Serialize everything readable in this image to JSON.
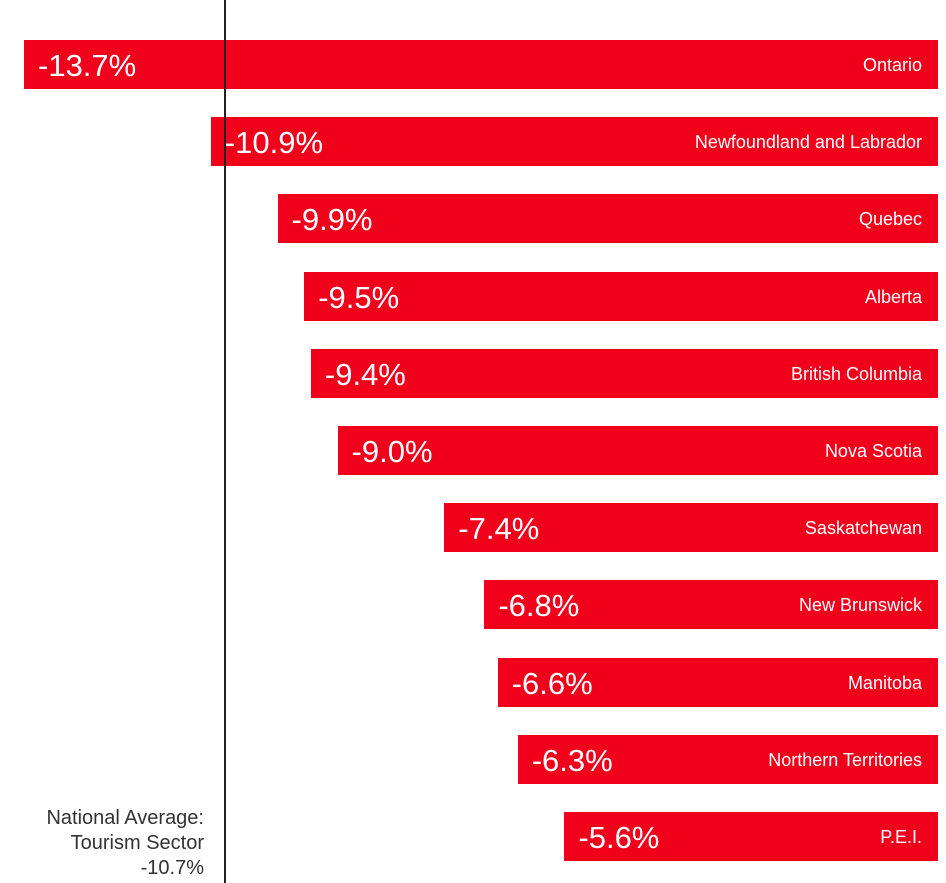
{
  "chart_data": {
    "type": "bar",
    "orientation": "horizontal",
    "categories": [
      "Ontario",
      "Newfoundland and Labrador",
      "Quebec",
      "Alberta",
      "British Columbia",
      "Nova Scotia",
      "Saskatchewan",
      "New Brunswick",
      "Manitoba",
      "Northern Territories",
      "P.E.I."
    ],
    "values": [
      -13.7,
      -10.9,
      -9.9,
      -9.5,
      -9.4,
      -9.0,
      -7.4,
      -6.8,
      -6.6,
      -6.3,
      -5.6
    ],
    "value_labels": [
      "-13.7%",
      "-10.9%",
      "-9.9%",
      "-9.5%",
      "-9.4%",
      "-9.0%",
      "-7.4%",
      "-6.8%",
      "-6.6%",
      "-6.3%",
      "-5.6%"
    ],
    "bar_color": "#f0001a",
    "reference_line": {
      "value": -10.7,
      "label_lines": [
        "National Average:",
        "Tourism Sector",
        "-10.7%"
      ]
    }
  }
}
